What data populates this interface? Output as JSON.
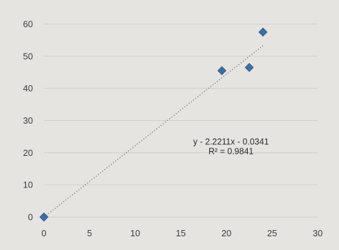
{
  "chart_data": {
    "type": "scatter",
    "title": "",
    "xlabel": "",
    "ylabel": "",
    "xlim": [
      0,
      30
    ],
    "ylim": [
      0,
      60
    ],
    "x_ticks": [
      0,
      5,
      10,
      15,
      20,
      25,
      30
    ],
    "y_ticks": [
      0,
      10,
      20,
      30,
      40,
      50,
      60
    ],
    "x_tick_labels": [
      "0",
      "5",
      "10",
      "15",
      "20",
      "25",
      "30"
    ],
    "y_tick_labels": [
      "0",
      "10",
      "20",
      "30",
      "40",
      "50",
      "60"
    ],
    "grid": "horizontal",
    "legend": "none",
    "series": [
      {
        "marker": "diamond",
        "color": "#3a6fa8",
        "points": [
          {
            "x": 0,
            "y": 0
          },
          {
            "x": 19.5,
            "y": 45.5
          },
          {
            "x": 22.5,
            "y": 46.5
          },
          {
            "x": 24,
            "y": 57.5
          }
        ]
      }
    ],
    "trendline": {
      "type": "linear",
      "slope": 2.2211,
      "intercept": -0.0341,
      "x_range": [
        0,
        24
      ],
      "color": "#777777",
      "style": "dotted"
    },
    "annotations": [
      {
        "text": "y - 2.2211x - 0.0341",
        "x": 20.5,
        "y": 22.5
      },
      {
        "text": "R² = 0.9841",
        "x": 20.5,
        "y": 19.5
      }
    ]
  }
}
